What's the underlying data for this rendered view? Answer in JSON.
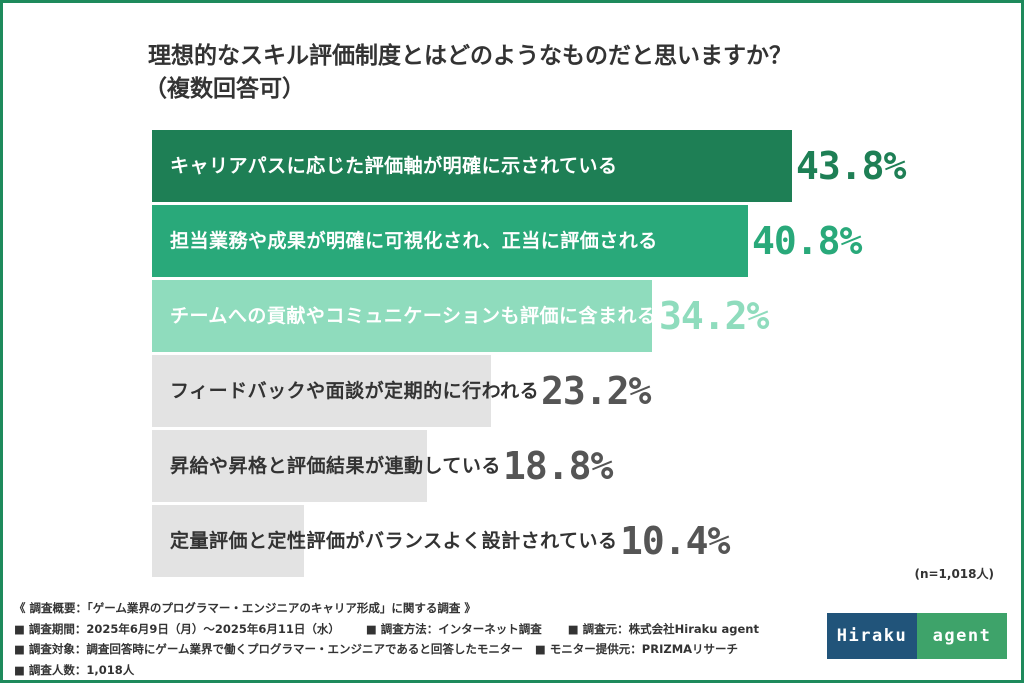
{
  "title": {
    "line1": "理想的なスキル評価制度とはどのようなものだと思いますか？",
    "line2": "（複数回答可）"
  },
  "chart_data": {
    "type": "bar",
    "orientation": "horizontal",
    "categories": [
      "キャリアパスに応じた評価軸が明確に示されている",
      "担当業務や成果が明確に可視化され、正当に評価される",
      "チームへの貢献やコミュニケーションも評価に含まれる",
      "フィードバックや面談が定期的に行われる",
      "昇給や昇格と評価結果が連動している",
      "定量評価と定性評価がバランスよく設計されている"
    ],
    "values": [
      43.8,
      40.8,
      34.2,
      23.2,
      18.8,
      10.4
    ],
    "value_labels": [
      "43.8%",
      "40.8%",
      "34.2%",
      "23.2%",
      "18.8%",
      "10.4%"
    ],
    "xlim": [
      0,
      50
    ],
    "grid": false,
    "legend": "none",
    "colors": {
      "bar": [
        "#1e7f55",
        "#29a97a",
        "#8fdcbd",
        "#e3e3e3",
        "#e3e3e3",
        "#e3e3e3"
      ],
      "label": [
        "#ffffff",
        "#ffffff",
        "#ffffff",
        "#333333",
        "#333333",
        "#333333"
      ],
      "value": [
        "#1e7f55",
        "#29a97a",
        "#8fdcbd",
        "#555555",
        "#555555",
        "#555555"
      ]
    }
  },
  "note": "(n=1,018人)",
  "footer": {
    "summary": "《 調査概要：「ゲーム業界のプログラマー・エンジニアのキャリア形成」に関する調査 》",
    "period": "■ 調査期間：2025年6月9日（月）〜2025年6月11日（水）",
    "method": "■ 調査方法：インターネット調査",
    "source": "■ 調査元：株式会社Hiraku agent",
    "target": "■ 調査対象：調査回答時にゲーム業界で働くプログラマー・エンジニアであると回答したモニター",
    "provider": "■ モニター提供元：PRIZMAリサーチ",
    "count": "■ 調査人数：1,018人"
  },
  "logo": {
    "left": "Hiraku",
    "right": "agent"
  }
}
